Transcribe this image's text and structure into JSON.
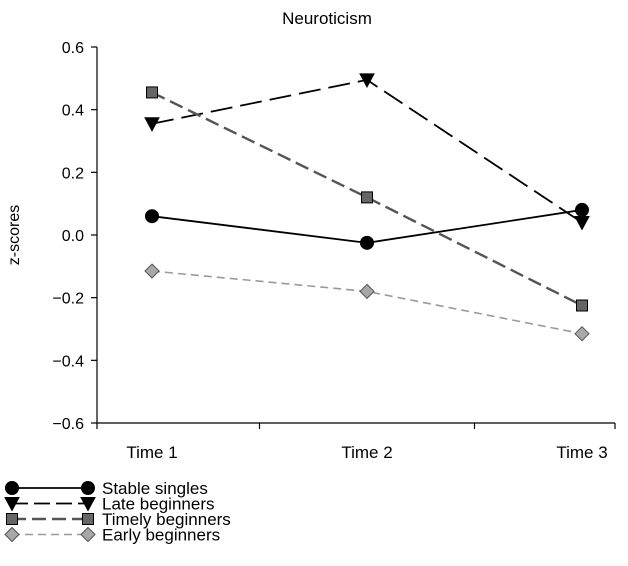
{
  "chart_data": {
    "type": "line",
    "title": "Neuroticism",
    "xlabel": "",
    "ylabel": "z-scores",
    "categories": [
      "Time 1",
      "Time 2",
      "Time 3"
    ],
    "ylim": [
      -0.6,
      0.6
    ],
    "yticks": [
      0.6,
      0.4,
      0.2,
      0.0,
      -0.2,
      -0.4,
      -0.6
    ],
    "ytick_labels": [
      "0.6",
      "0.4",
      "0.2",
      "0.0",
      "−0.2",
      "−0.4",
      "−0.6"
    ],
    "grid": false,
    "legend_position": "bottom-left",
    "series": [
      {
        "name": "Stable singles",
        "values": [
          0.06,
          -0.025,
          0.08
        ],
        "marker": "circle",
        "line": "solid",
        "color": "#000000",
        "marker_fill": "#000000",
        "dash": ""
      },
      {
        "name": "Late beginners",
        "values": [
          0.355,
          0.495,
          0.04
        ],
        "marker": "triangle",
        "line": "dashed",
        "color": "#000000",
        "marker_fill": "#000000",
        "dash": "22,8"
      },
      {
        "name": "Timely beginners",
        "values": [
          0.455,
          0.12,
          -0.225
        ],
        "marker": "square",
        "line": "dashed",
        "color": "#555555",
        "marker_fill": "#666666",
        "dash": "14,6"
      },
      {
        "name": "Early beginners",
        "values": [
          -0.115,
          -0.18,
          -0.315
        ],
        "marker": "diamond",
        "line": "dashed",
        "color": "#9a9a9a",
        "marker_fill": "#a8a8a8",
        "dash": "8,5"
      }
    ]
  }
}
